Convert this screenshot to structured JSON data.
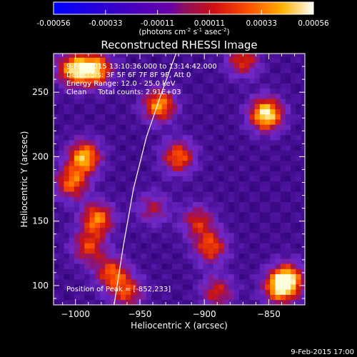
{
  "colorbar": {
    "ticks": [
      "-0.00056",
      "-0.00033",
      "-0.00011",
      "0.00011",
      "0.00033",
      "0.00056"
    ],
    "unit_base": "(photons cm",
    "unit_exp1": "-2",
    "unit_mid1": " s",
    "unit_exp2": "-1",
    "unit_mid2": " asec",
    "unit_exp3": "-2",
    "unit_end": ")",
    "range": [
      -0.00056,
      0.00056
    ]
  },
  "chart_data": {
    "type": "heatmap",
    "title": "Reconstructed RHESSI Image",
    "xlabel": "Heliocentric X (arcsec)",
    "ylabel": "Heliocentric Y (arcsec)",
    "xlim": [
      -1017,
      -822
    ],
    "ylim": [
      85,
      280
    ],
    "xticks": [
      {
        "value": -1000,
        "label": "−1000"
      },
      {
        "value": -950,
        "label": "−950"
      },
      {
        "value": -900,
        "label": "−900"
      },
      {
        "value": -850,
        "label": "−850"
      }
    ],
    "yticks": [
      {
        "value": 100,
        "label": "100"
      },
      {
        "value": 150,
        "label": "150"
      },
      {
        "value": 200,
        "label": "200"
      },
      {
        "value": 250,
        "label": "250"
      }
    ],
    "limb": [
      [
        -970,
        85
      ],
      [
        -963,
        130
      ],
      [
        -955,
        175
      ],
      [
        -945,
        215
      ],
      [
        -933,
        250
      ],
      [
        -922,
        280
      ]
    ],
    "hotspots": [
      {
        "x": -852,
        "y": 233,
        "strength": 0.9
      },
      {
        "x": -935,
        "y": 240,
        "strength": 0.7
      },
      {
        "x": -920,
        "y": 200,
        "strength": 0.6
      },
      {
        "x": -985,
        "y": 268,
        "strength": 0.8
      },
      {
        "x": -1002,
        "y": 268,
        "strength": 0.7
      },
      {
        "x": -993,
        "y": 200,
        "strength": 0.75
      },
      {
        "x": -1003,
        "y": 180,
        "strength": 0.6
      },
      {
        "x": -983,
        "y": 152,
        "strength": 0.65
      },
      {
        "x": -990,
        "y": 130,
        "strength": 0.5
      },
      {
        "x": -972,
        "y": 110,
        "strength": 0.55
      },
      {
        "x": -960,
        "y": 95,
        "strength": 0.5
      },
      {
        "x": -895,
        "y": 130,
        "strength": 0.55
      },
      {
        "x": -905,
        "y": 150,
        "strength": 0.45
      },
      {
        "x": -835,
        "y": 105,
        "strength": 0.7
      },
      {
        "x": -842,
        "y": 98,
        "strength": 0.6
      },
      {
        "x": -890,
        "y": 95,
        "strength": 0.45
      },
      {
        "x": -870,
        "y": 275,
        "strength": 0.5
      },
      {
        "x": -940,
        "y": 160,
        "strength": 0.35
      }
    ],
    "annotations": {
      "time": "9-Feb-2015 13:10:36.000 to 13:14:42.000",
      "detectors": "Detectors: 3F 5F 6F 7F 8F 9F, Att 0",
      "energy": "Energy Range: 12.0 - 25.0 keV",
      "clean": "Clean     Total counts: 2.91E+03",
      "peak": "Position of Peak = [-852,233]"
    }
  },
  "footer": {
    "timestamp": "9-Feb-2015 17:00"
  }
}
